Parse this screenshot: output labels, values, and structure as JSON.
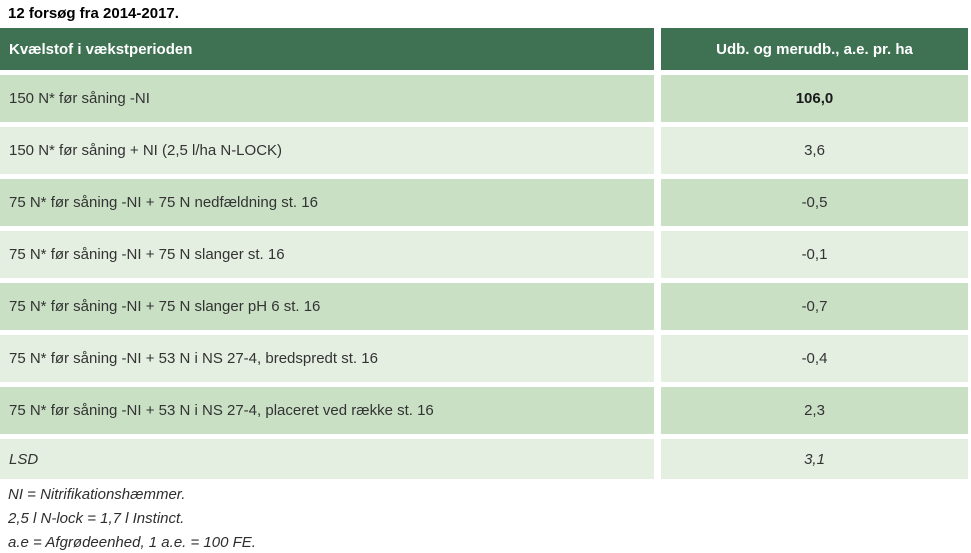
{
  "title": "12 forsøg fra 2014-2017.",
  "table": {
    "headers": {
      "treatment": "Kvælstof i vækstperioden",
      "yield": "Udb. og merudb., a.e. pr. ha"
    },
    "rows": [
      {
        "label": "150 N* før såning -NI",
        "value": "106,0"
      },
      {
        "label": "150 N* før såning + NI (2,5 l/ha N-LOCK)",
        "value": "3,6"
      },
      {
        "label": "75 N* før såning -NI + 75 N nedfældning st. 16",
        "value": "-0,5"
      },
      {
        "label": "75 N* før såning -NI + 75 N slanger st. 16",
        "value": "-0,1"
      },
      {
        "label": "75 N* før såning -NI + 75 N slanger pH 6 st. 16",
        "value": "-0,7"
      },
      {
        "label": "75 N* før såning -NI + 53 N i NS 27-4, bredspredt st. 16",
        "value": "-0,4"
      },
      {
        "label": "75 N* før såning -NI + 53 N i NS 27-4, placeret ved række st. 16",
        "value": "2,3"
      },
      {
        "label": "LSD",
        "value": "3,1"
      }
    ]
  },
  "footnotes": [
    "NI = Nitrifikationshæmmer.",
    "2,5 l N-lock = 1,7 l Instinct.",
    "a.e = Afgrødeenhed, 1 a.e. = 100 FE."
  ],
  "colors": {
    "header_bg": "#3e7253",
    "row_green_bg": "#c9e0c5",
    "row_light_bg": "#e4eee1",
    "header_text": "#ffffff",
    "body_text": "#333333"
  }
}
